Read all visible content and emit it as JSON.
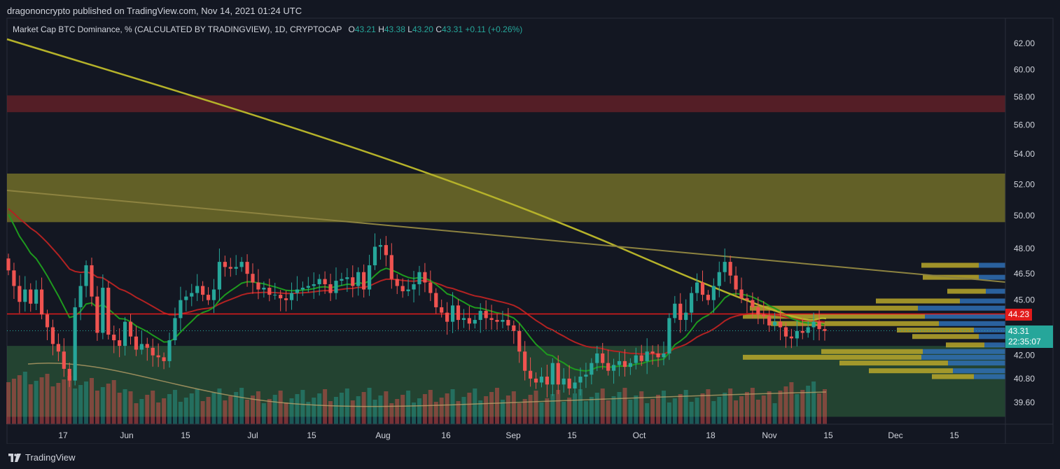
{
  "header": {
    "published_text": "dragononcrypto published on TradingView.com, Nov 14, 2021 01:24 UTC"
  },
  "legend": {
    "symbol": "Market Cap BTC Dominance, % (CALCULATED BY TRADINGVIEW), 1D, CRYPTOCAP",
    "o_label": "O",
    "o_value": "43.21",
    "h_label": "H",
    "h_value": "43.38",
    "l_label": "L",
    "l_value": "43.20",
    "c_label": "C",
    "c_value": "43.31",
    "change": "+0.11 (+0.26%)"
  },
  "footer": {
    "brand": "TradingView"
  },
  "colors": {
    "background": "#131722",
    "up": "#26a69a",
    "down": "#ef5350",
    "resistance_zone": "#6b2228",
    "supply_zone": "#7d7a2a",
    "support_zone": "#2c5a3a",
    "ma_short": "#1e9a1e",
    "ma_mid": "#b22222",
    "ma_long": "#b5b22a",
    "trendline": "#8d8340",
    "horizontal_line": "#e21b1b"
  },
  "chart_data": {
    "type": "candlestick",
    "title": "Market Cap BTC Dominance, % (CALCULATED BY TRADINGVIEW), 1D, CRYPTOCAP",
    "y_ticks": [
      "62.00",
      "60.00",
      "58.00",
      "56.00",
      "54.00",
      "52.00",
      "50.00",
      "48.00",
      "46.50",
      "45.00",
      "42.00",
      "40.80",
      "39.60"
    ],
    "x_ticks": [
      "17",
      "Jun",
      "15",
      "Jul",
      "15",
      "Aug",
      "16",
      "Sep",
      "15",
      "Oct",
      "18",
      "Nov",
      "15",
      "Dec",
      "15"
    ],
    "current_price": "43.31",
    "countdown": "22:35:07",
    "horizontal_level": "44.23",
    "scale": "log",
    "zones": [
      {
        "name": "resistance",
        "from": 56.9,
        "to": 58.1
      },
      {
        "name": "supply",
        "from": 49.6,
        "to": 52.7
      },
      {
        "name": "support",
        "from": 38.9,
        "to": 42.5
      }
    ],
    "candle_closes": [
      46.7,
      45.8,
      44.9,
      45.6,
      44.8,
      45.6,
      44.2,
      43.5,
      42.6,
      42.2,
      41.3,
      40.7,
      44.6,
      45.8,
      47.0,
      45.2,
      43.2,
      45.7,
      43.1,
      42.8,
      42.5,
      43.8,
      43.0,
      42.3,
      42.6,
      42.4,
      42.0,
      41.9,
      41.7,
      42.8,
      44.0,
      45.0,
      45.2,
      45.4,
      45.8,
      45.3,
      45.0,
      45.6,
      47.2,
      46.9,
      46.8,
      46.9,
      47.2,
      46.5,
      46.0,
      45.6,
      45.7,
      45.3,
      45.3,
      45.1,
      45.0,
      45.4,
      45.6,
      45.7,
      45.8,
      45.9,
      46.2,
      45.9,
      45.4,
      46.1,
      46.2,
      46.3,
      45.8,
      46.6,
      45.6,
      47.0,
      48.1,
      48.2,
      47.6,
      46.2,
      45.8,
      45.5,
      45.6,
      45.9,
      46.6,
      46.0,
      45.4,
      44.6,
      44.3,
      43.8,
      44.7,
      43.9,
      44.0,
      43.7,
      43.9,
      44.4,
      44.0,
      43.9,
      43.8,
      43.9,
      43.6,
      43.3,
      42.2,
      41.2,
      40.8,
      40.6,
      40.9,
      40.5,
      41.6,
      40.5,
      40.8,
      40.3,
      40.6,
      40.9,
      41.0,
      41.6,
      42.1,
      41.6,
      41.2,
      41.5,
      41.7,
      41.4,
      41.6,
      42.0,
      41.7,
      42.2,
      42.1,
      41.9,
      42.1,
      44.0,
      44.8,
      43.9,
      44.3,
      45.4,
      46.0,
      45.3,
      45.0,
      45.8,
      46.6,
      47.2,
      46.4,
      45.6,
      45.1,
      45.0,
      44.6,
      44.2,
      44.1,
      43.6,
      43.8,
      43.5,
      43.0,
      42.9,
      43.3,
      43.2,
      43.5,
      43.8,
      43.4,
      43.3
    ],
    "volume_profile": [
      {
        "price": 47.0,
        "up": 82,
        "down": 38
      },
      {
        "price": 46.3,
        "up": 80,
        "down": 38
      },
      {
        "price": 45.5,
        "up": 55,
        "down": 28
      },
      {
        "price": 44.95,
        "up": 120,
        "down": 65
      },
      {
        "price": 44.55,
        "up": 240,
        "down": 125
      },
      {
        "price": 44.1,
        "up": 260,
        "down": 115
      },
      {
        "price": 43.7,
        "up": 240,
        "down": 95
      },
      {
        "price": 43.35,
        "up": 110,
        "down": 45
      },
      {
        "price": 43.0,
        "up": 95,
        "down": 38
      },
      {
        "price": 42.55,
        "up": 55,
        "down": 30
      },
      {
        "price": 42.2,
        "up": 145,
        "down": 118
      },
      {
        "price": 41.9,
        "up": 255,
        "down": 120
      },
      {
        "price": 41.6,
        "up": 155,
        "down": 82
      },
      {
        "price": 41.2,
        "up": 120,
        "down": 75
      },
      {
        "price": 40.9,
        "up": 60,
        "down": 45
      }
    ]
  }
}
